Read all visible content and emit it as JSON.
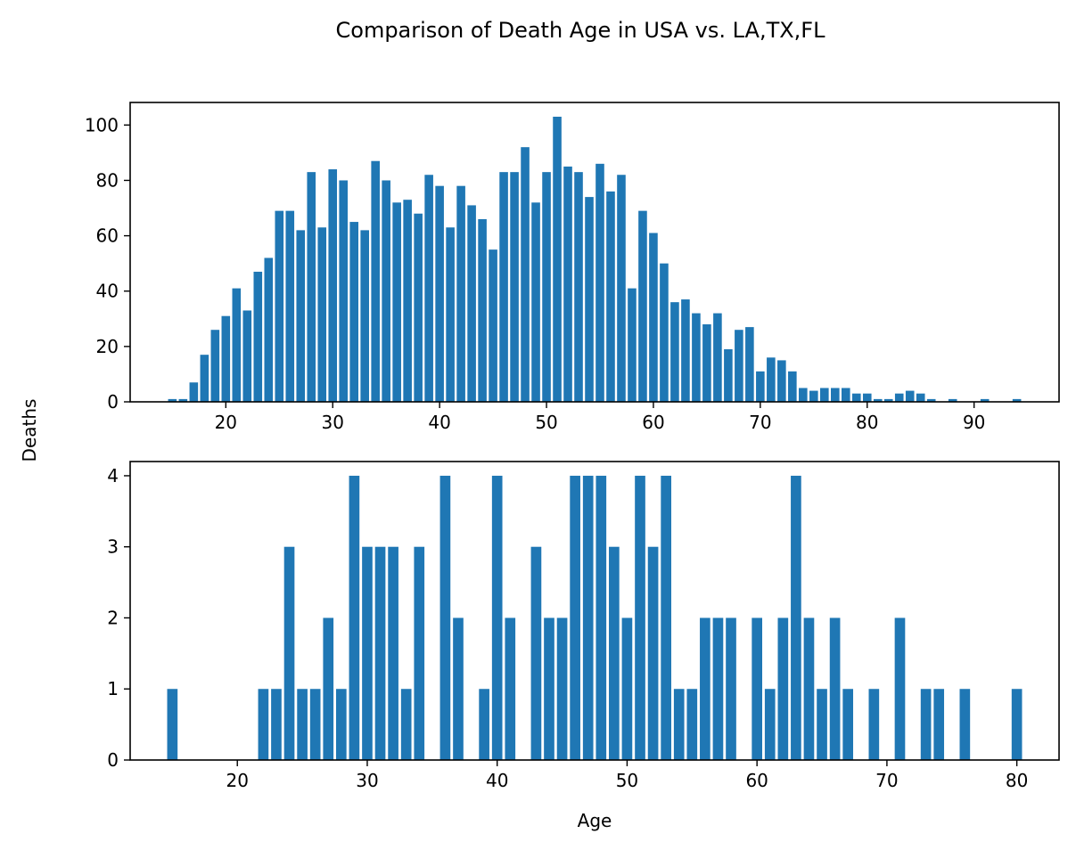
{
  "figure": {
    "title": "Comparison of Death Age in USA vs. LA,TX,FL",
    "shared_ylabel": "Deaths"
  },
  "colors": {
    "bar": "#1f77b4",
    "axis": "#000000",
    "background": "#ffffff"
  },
  "chart_data": [
    {
      "type": "bar",
      "title": "",
      "xlabel": "",
      "ylabel": "Deaths",
      "xlim": [
        11.05,
        97.95
      ],
      "ylim": [
        0,
        108.15
      ],
      "xticks": [
        20,
        30,
        40,
        50,
        60,
        70,
        80,
        90
      ],
      "yticks": [
        0,
        20,
        40,
        60,
        80,
        100
      ],
      "bar_width": 0.8,
      "x": [
        15,
        16,
        17,
        18,
        19,
        20,
        21,
        22,
        23,
        24,
        25,
        26,
        27,
        28,
        29,
        30,
        31,
        32,
        33,
        34,
        35,
        36,
        37,
        38,
        39,
        40,
        41,
        42,
        43,
        44,
        45,
        46,
        47,
        48,
        49,
        50,
        51,
        52,
        53,
        54,
        55,
        56,
        57,
        58,
        59,
        60,
        61,
        62,
        63,
        64,
        65,
        66,
        67,
        68,
        69,
        70,
        71,
        72,
        73,
        74,
        75,
        76,
        77,
        78,
        79,
        80,
        81,
        82,
        83,
        84,
        85,
        86,
        88,
        91,
        94
      ],
      "values": [
        1,
        1,
        7,
        17,
        26,
        31,
        41,
        33,
        47,
        52,
        69,
        69,
        62,
        83,
        63,
        84,
        80,
        65,
        62,
        87,
        80,
        72,
        73,
        68,
        82,
        78,
        63,
        78,
        71,
        66,
        55,
        83,
        83,
        92,
        72,
        83,
        103,
        85,
        83,
        74,
        86,
        76,
        82,
        41,
        69,
        61,
        50,
        36,
        37,
        32,
        28,
        32,
        19,
        26,
        27,
        11,
        16,
        15,
        11,
        5,
        4,
        5,
        5,
        5,
        3,
        3,
        1,
        1,
        3,
        4,
        3,
        1,
        1,
        1,
        1
      ],
      "grid": false,
      "legend": "none"
    },
    {
      "type": "bar",
      "title": "",
      "xlabel": "Age",
      "ylabel": "Deaths",
      "xlim": [
        11.75,
        83.25
      ],
      "ylim": [
        0,
        4.2
      ],
      "xticks": [
        20,
        30,
        40,
        50,
        60,
        70,
        80
      ],
      "yticks": [
        0,
        1,
        2,
        3,
        4
      ],
      "bar_width": 0.8,
      "x": [
        15,
        22,
        23,
        24,
        25,
        26,
        27,
        28,
        29,
        30,
        31,
        32,
        33,
        34,
        36,
        37,
        39,
        40,
        41,
        43,
        44,
        45,
        46,
        47,
        48,
        49,
        50,
        51,
        52,
        53,
        54,
        55,
        56,
        57,
        58,
        60,
        61,
        62,
        63,
        64,
        65,
        66,
        67,
        69,
        71,
        73,
        74,
        76,
        80
      ],
      "values": [
        1,
        1,
        1,
        3,
        1,
        1,
        2,
        1,
        4,
        3,
        3,
        3,
        1,
        3,
        4,
        2,
        1,
        4,
        2,
        3,
        2,
        2,
        4,
        4,
        4,
        3,
        2,
        4,
        3,
        4,
        1,
        1,
        2,
        2,
        2,
        2,
        1,
        2,
        4,
        2,
        1,
        2,
        1,
        1,
        2,
        1,
        1,
        1,
        1
      ],
      "grid": false,
      "legend": "none"
    }
  ]
}
